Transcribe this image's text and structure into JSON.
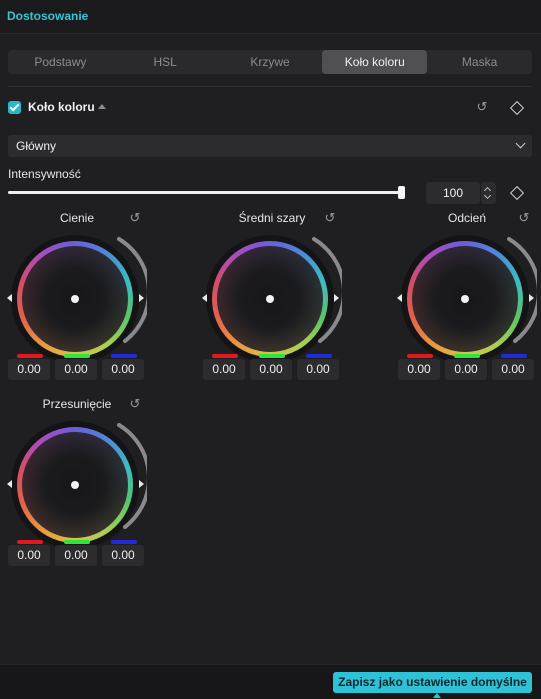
{
  "panel": {
    "title": "Dostosowanie"
  },
  "tabs": [
    {
      "label": "Podstawy",
      "active": false
    },
    {
      "label": "HSL",
      "active": false
    },
    {
      "label": "Krzywe",
      "active": false
    },
    {
      "label": "Koło koloru",
      "active": true
    },
    {
      "label": "Maska",
      "active": false
    }
  ],
  "section": {
    "title": "Koło koloru",
    "enabled": true
  },
  "mode_select": {
    "value": "Główny"
  },
  "intensity": {
    "label": "Intensywność",
    "value": "100",
    "fraction": 1.0
  },
  "wheels": [
    {
      "label": "Cienie",
      "r": "0.00",
      "g": "0.00",
      "b": "0.00"
    },
    {
      "label": "Średni szary",
      "r": "0.00",
      "g": "0.00",
      "b": "0.00"
    },
    {
      "label": "Odcień",
      "r": "0.00",
      "g": "0.00",
      "b": "0.00"
    },
    {
      "label": "Przesunięcie",
      "r": "0.00",
      "g": "0.00",
      "b": "0.00"
    }
  ],
  "colors": {
    "accent": "#2fc2d6",
    "red": "#e0191b",
    "green": "#2ee63a",
    "blue": "#1f2bd8"
  },
  "footer": {
    "save_label": "Zapisz jako ustawienie domyślne"
  }
}
